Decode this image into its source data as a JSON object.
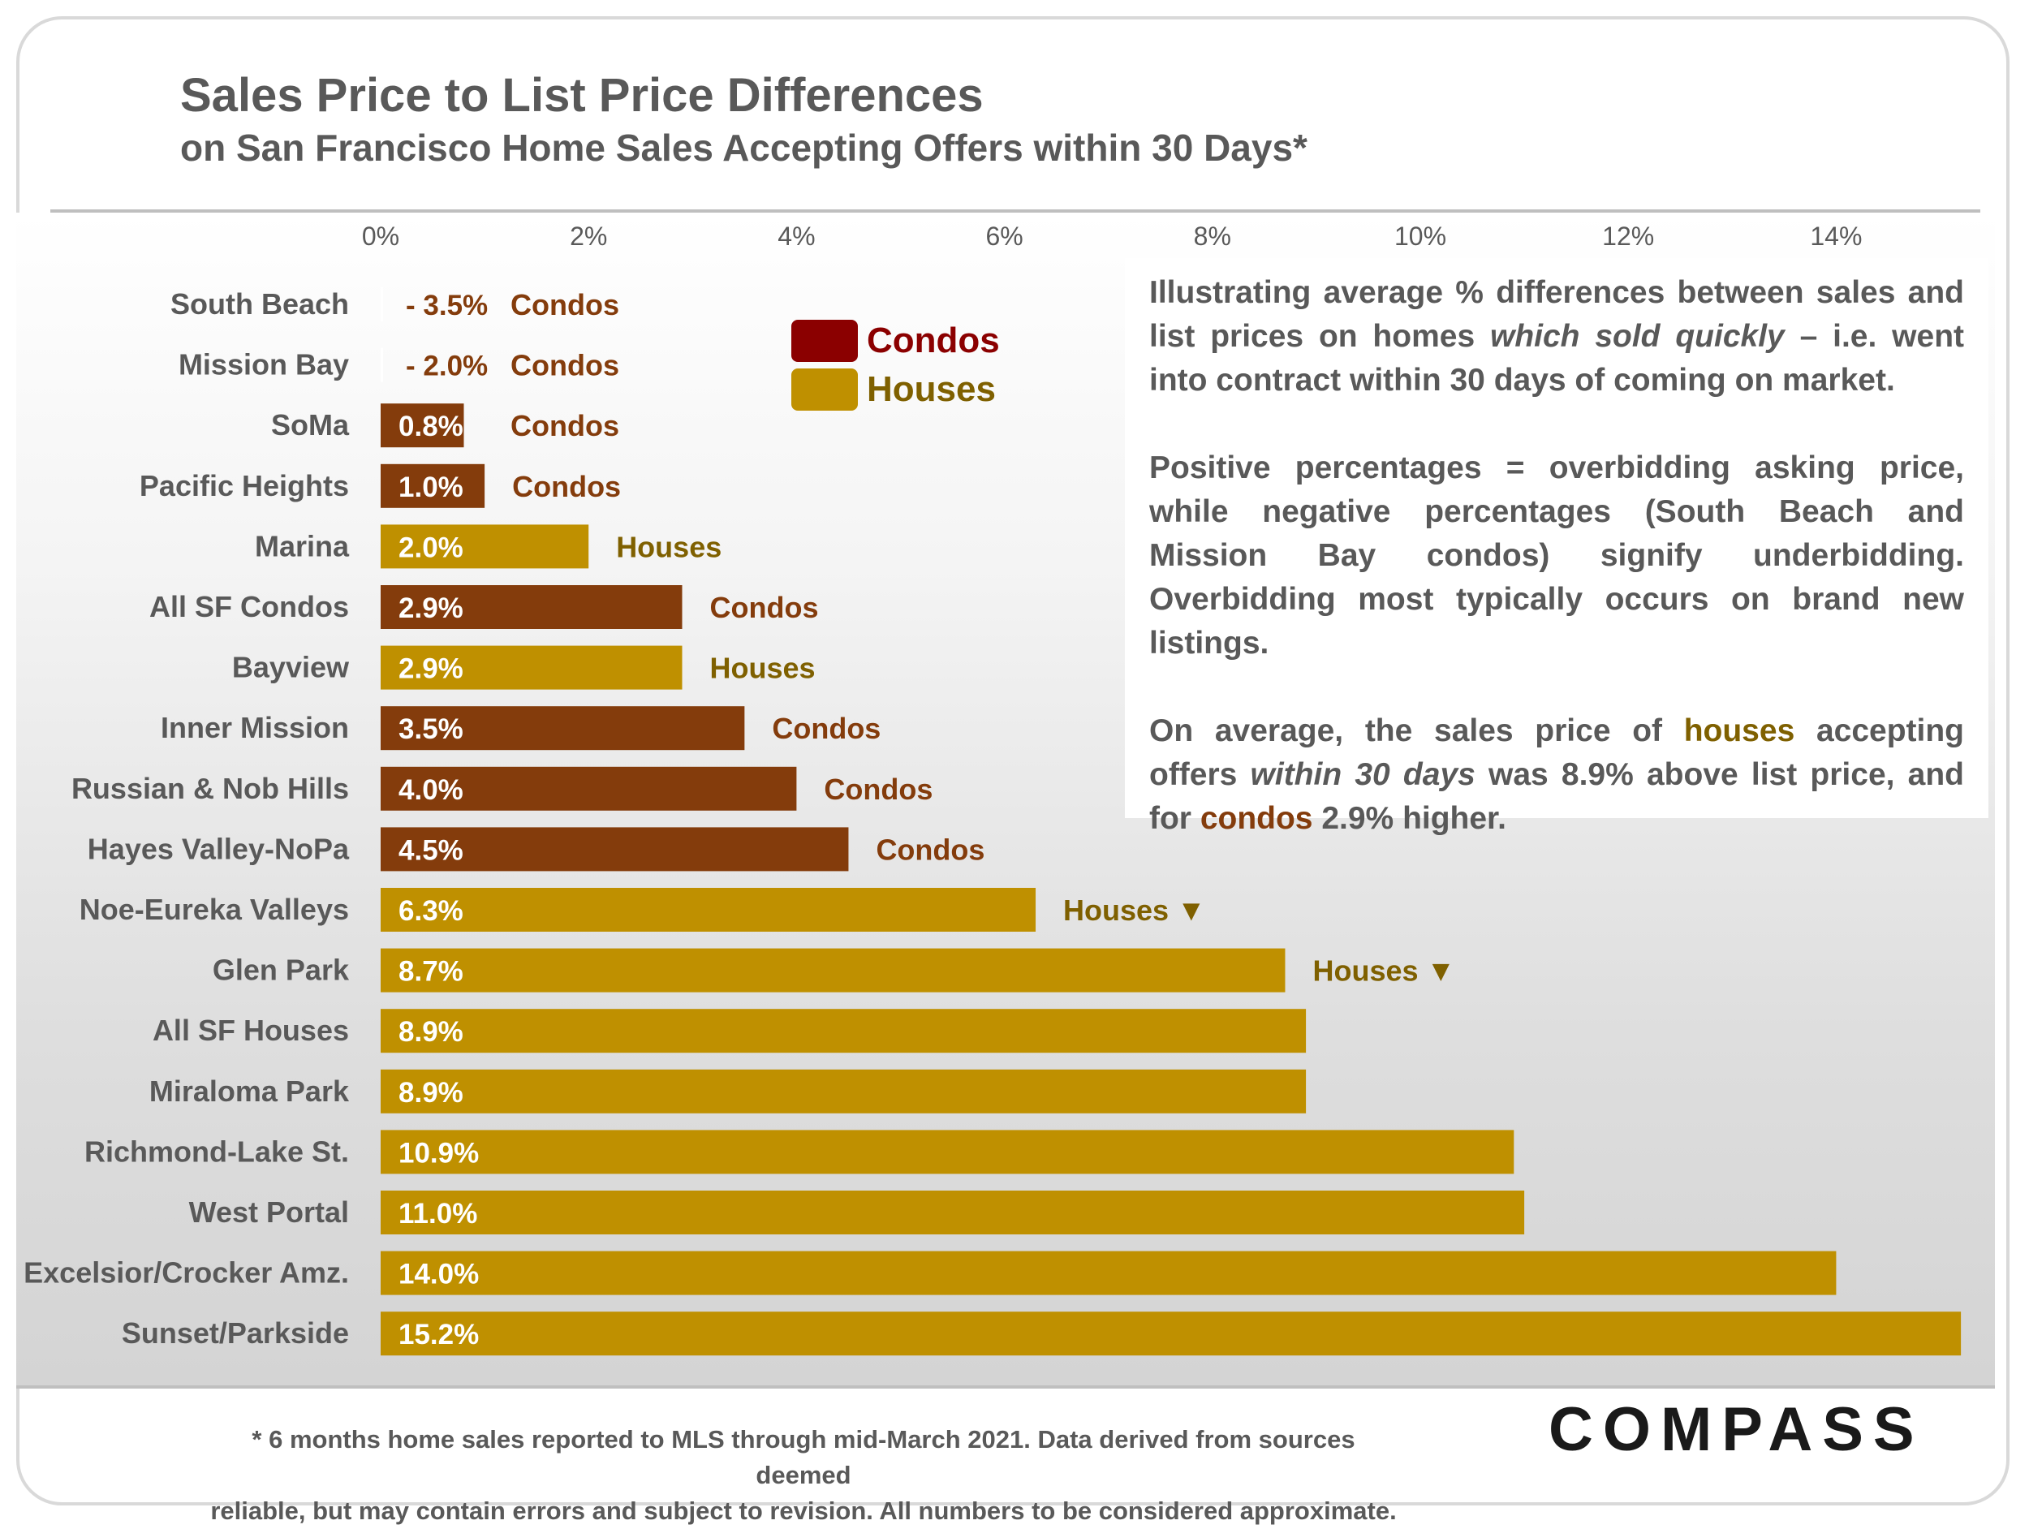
{
  "header": {
    "title": "Sales Price to List Price Differences",
    "subtitle": "on San Francisco Home Sales Accepting Offers within 30 Days*"
  },
  "legend": {
    "condos": "Condos",
    "houses": "Houses"
  },
  "colors": {
    "condo_bar": "#843c0c",
    "house_bar": "#bf9000",
    "condo_text": "#843c0c",
    "house_text": "#7f6000",
    "legend_condo": "#8b0000",
    "legend_house": "#bf9000",
    "axis_text": "#595959"
  },
  "note": {
    "p1_a": "Illustrating average % differences between sales and list prices on homes ",
    "p1_em": "which sold quickly",
    "p1_b": " – i.e. went into contract within 30 days of coming on market.",
    "p2": "Positive percentages = overbidding asking price, while negative percentages (South Beach and Mission Bay condos) signify underbidding. Overbidding most typically occurs on brand new listings.",
    "p3_a": "On average, the sales price of ",
    "p3_houses": "houses",
    "p3_b": " accepting offers ",
    "p3_em": "within 30 days",
    "p3_c": " was 8.9% above list price, and for ",
    "p3_condos": "condos",
    "p3_d": " 2.9% higher."
  },
  "footnote": {
    "line1": "* 6 months home sales reported to MLS through mid-March 2021. Data derived from sources deemed",
    "line2": "reliable, but may contain errors and subject to revision. All numbers to be considered approximate."
  },
  "logo": {
    "text": "COMPASS"
  },
  "chart_data": {
    "type": "bar",
    "orientation": "horizontal",
    "title": "Sales Price to List Price Differences",
    "xlim": [
      0,
      15.2
    ],
    "x_ticks": [
      0,
      2,
      4,
      6,
      8,
      10,
      12,
      14
    ],
    "x_tick_labels": [
      "0%",
      "2%",
      "4%",
      "6%",
      "8%",
      "10%",
      "12%",
      "14%"
    ],
    "grid": false,
    "legend_position": "top-center",
    "categories": [
      "South Beach",
      "Mission Bay",
      "SoMa",
      "Pacific Heights",
      "Marina",
      "All SF Condos",
      "Bayview",
      "Inner Mission",
      "Russian & Nob Hills",
      "Hayes Valley-NoPa",
      "Noe-Eureka Valleys",
      "Glen Park",
      "All SF Houses",
      "Miraloma Park",
      "Richmond-Lake St.",
      "West Portal",
      "Excelsior/Crocker Amz.",
      "Sunset/Parkside"
    ],
    "values": [
      -3.5,
      -2.0,
      0.8,
      1.0,
      2.0,
      2.9,
      2.9,
      3.5,
      4.0,
      4.5,
      6.3,
      8.7,
      8.9,
      8.9,
      10.9,
      11.0,
      14.0,
      15.2
    ],
    "value_labels": [
      "- 3.5%",
      "- 2.0%",
      "0.8%",
      "1.0%",
      "2.0%",
      "2.9%",
      "2.9%",
      "3.5%",
      "4.0%",
      "4.5%",
      "6.3%",
      "8.7%",
      "8.9%",
      "8.9%",
      "10.9%",
      "11.0%",
      "14.0%",
      "15.2%"
    ],
    "property_type": [
      "Condos",
      "Condos",
      "Condos",
      "Condos",
      "Houses",
      "Condos",
      "Houses",
      "Condos",
      "Condos",
      "Condos",
      "Houses",
      "Houses",
      "Houses",
      "Houses",
      "Houses",
      "Houses",
      "Houses",
      "Houses"
    ],
    "type_labels": [
      "Condos",
      "Condos",
      "Condos",
      "Condos",
      "Houses",
      "Condos",
      "Houses",
      "Condos",
      "Condos",
      "Condos",
      "Houses ▼",
      "Houses ▼",
      "",
      "",
      "",
      "",
      "",
      ""
    ]
  }
}
